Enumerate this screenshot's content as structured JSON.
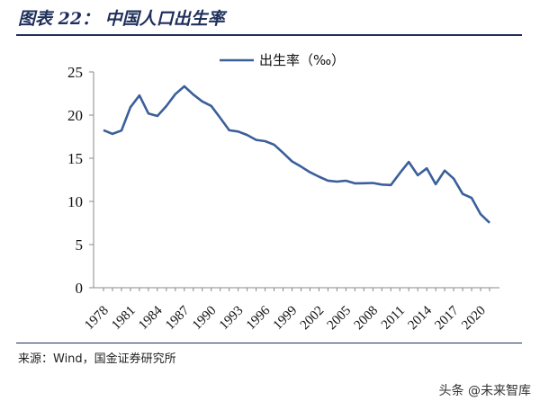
{
  "header": {
    "title": "图表 22：  中国人口出生率"
  },
  "footer": {
    "source": "来源：Wind，国金证券研究所",
    "watermark": "头条 @未来智库"
  },
  "colors": {
    "series_line": "#3a5f9a",
    "rule": "#1f2f5b"
  },
  "chart_data": {
    "type": "line",
    "title": "",
    "xlabel": "",
    "ylabel": "",
    "ylim": [
      0,
      25
    ],
    "yticks": [
      0,
      5,
      10,
      15,
      20,
      25
    ],
    "xtick_labels": [
      "1978",
      "1981",
      "1984",
      "1987",
      "1990",
      "1993",
      "1996",
      "1999",
      "2002",
      "2005",
      "2008",
      "2011",
      "2014",
      "2017",
      "2020"
    ],
    "grid": false,
    "legend_position": "top-center",
    "series": [
      {
        "name": "出生率（‰）",
        "x": [
          1978,
          1979,
          1980,
          1981,
          1982,
          1983,
          1984,
          1985,
          1986,
          1987,
          1988,
          1989,
          1990,
          1991,
          1992,
          1993,
          1994,
          1995,
          1996,
          1997,
          1998,
          1999,
          2000,
          2001,
          2002,
          2003,
          2004,
          2005,
          2006,
          2007,
          2008,
          2009,
          2010,
          2011,
          2012,
          2013,
          2014,
          2015,
          2016,
          2017,
          2018,
          2019,
          2020,
          2021
        ],
        "values": [
          18.25,
          17.82,
          18.21,
          20.91,
          22.28,
          20.19,
          19.9,
          21.04,
          22.43,
          23.33,
          22.37,
          21.58,
          21.06,
          19.68,
          18.24,
          18.09,
          17.7,
          17.12,
          16.98,
          16.57,
          15.64,
          14.64,
          14.03,
          13.38,
          12.86,
          12.41,
          12.29,
          12.4,
          12.09,
          12.1,
          12.14,
          11.95,
          11.9,
          13.27,
          14.57,
          13.03,
          13.83,
          11.99,
          13.57,
          12.64,
          10.86,
          10.41,
          8.52,
          7.52
        ]
      }
    ]
  }
}
